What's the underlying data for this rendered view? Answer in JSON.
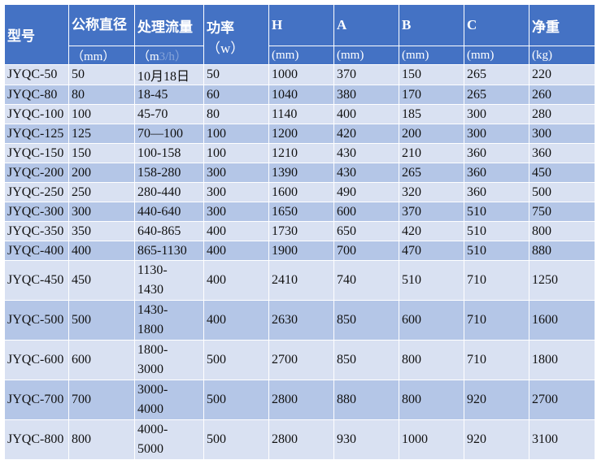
{
  "header": {
    "model": "型号",
    "diameter": "公称直径",
    "flow": "处理流量",
    "power": "功率",
    "power_unit": "（w）",
    "H": "H",
    "A": "A",
    "B": "B",
    "C": "C",
    "weight": "净重"
  },
  "units": {
    "diameter": "（mm）",
    "flow_prefix": "（m",
    "flow_suffix": "3/h）",
    "H": "(mm)",
    "A": "(mm)",
    "B": "(mm)",
    "C": "(mm)",
    "weight": "(kg)"
  },
  "colors": {
    "header": "#4472C4",
    "row_light": "#D9E1F2",
    "row_dark": "#B4C6E7"
  },
  "rows": [
    [
      "JYQC-50",
      "50",
      "10月18日",
      "50",
      "1000",
      "370",
      "150",
      "265",
      "220"
    ],
    [
      "JYQC-80",
      "80",
      "18-45",
      "60",
      "1040",
      "380",
      "170",
      "265",
      "260"
    ],
    [
      "JYQC-100",
      "100",
      "45-70",
      "80",
      "1140",
      "400",
      "185",
      "300",
      "280"
    ],
    [
      "JYQC-125",
      "125",
      "70—100",
      "100",
      "1200",
      "420",
      "200",
      "300",
      "300"
    ],
    [
      "JYQC-150",
      "150",
      "100-158",
      "100",
      "1210",
      "430",
      "210",
      "360",
      "360"
    ],
    [
      "JYQC-200",
      "200",
      "158-280",
      "300",
      "1390",
      "430",
      "265",
      "360",
      "450"
    ],
    [
      "JYQC-250",
      "250",
      "280-440",
      "300",
      "1600",
      "490",
      "320",
      "360",
      "500"
    ],
    [
      "JYQC-300",
      "300",
      "440-640",
      "300",
      "1650",
      "600",
      "370",
      "510",
      "750"
    ],
    [
      "JYQC-350",
      "350",
      "640-865",
      "400",
      "1730",
      "650",
      "420",
      "510",
      "800"
    ],
    [
      "JYQC-400",
      "400",
      "865-1130",
      "400",
      "1900",
      "700",
      "470",
      "510",
      "880"
    ],
    [
      "JYQC-450",
      "450",
      "1130-1430",
      "400",
      "2410",
      "740",
      "510",
      "710",
      "1250"
    ],
    [
      "JYQC-500",
      "500",
      "1430-1800",
      "400",
      "2630",
      "850",
      "600",
      "710",
      "1600"
    ],
    [
      "JYQC-600",
      "600",
      "1800-3000",
      "500",
      "2700",
      "850",
      "800",
      "710",
      "1800"
    ],
    [
      "JYQC-700",
      "700",
      "3000-4000",
      "500",
      "2800",
      "880",
      "800",
      "920",
      "2700"
    ],
    [
      "JYQC-800",
      "800",
      "4000-5000",
      "500",
      "2800",
      "930",
      "1000",
      "920",
      "3100"
    ]
  ]
}
